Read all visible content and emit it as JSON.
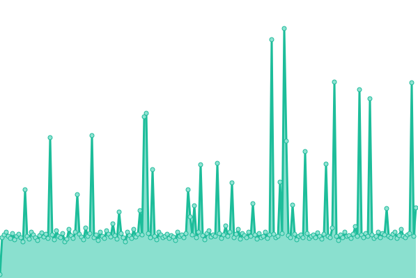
{
  "chart_data": {
    "type": "area",
    "title": "",
    "xlabel": "",
    "ylabel": "",
    "grid": false,
    "legend": "none",
    "ylim": [
      0,
      400
    ],
    "colors": {
      "line": "#1dbd9a",
      "area": "#8ae0cf",
      "marker_fill": "#8fe3d2",
      "marker_stroke": "#1db999"
    },
    "values": [
      5,
      58,
      62,
      66,
      60,
      57,
      64,
      55,
      60,
      63,
      58,
      52,
      127,
      60,
      56,
      66,
      62,
      58,
      54,
      61,
      65,
      59,
      63,
      57,
      202,
      62,
      55,
      68,
      60,
      58,
      64,
      52,
      56,
      70,
      61,
      57,
      66,
      120,
      63,
      59,
      55,
      72,
      60,
      64,
      205,
      58,
      62,
      54,
      66,
      60,
      57,
      68,
      63,
      59,
      78,
      61,
      56,
      95,
      64,
      58,
      52,
      66,
      61,
      57,
      70,
      59,
      63,
      97,
      62,
      232,
      237,
      64,
      58,
      156,
      60,
      55,
      66,
      62,
      58,
      60,
      63,
      57,
      61,
      59,
      54,
      66,
      60,
      62,
      58,
      64,
      127,
      88,
      62,
      104,
      58,
      66,
      163,
      61,
      55,
      64,
      68,
      59,
      62,
      60,
      165,
      64,
      57,
      62,
      75,
      60,
      66,
      137,
      58,
      63,
      70,
      56,
      64,
      61,
      58,
      66,
      60,
      107,
      62,
      56,
      64,
      58,
      60,
      66,
      57,
      62,
      343,
      63,
      58,
      60,
      138,
      64,
      359,
      197,
      61,
      58,
      105,
      63,
      55,
      60,
      62,
      58,
      182,
      64,
      57,
      60,
      62,
      58,
      65,
      60,
      56,
      63,
      164,
      60,
      58,
      72,
      282,
      60,
      54,
      62,
      58,
      66,
      60,
      61,
      57,
      63,
      74,
      60,
      271,
      62,
      58,
      64,
      60,
      258,
      62,
      57,
      60,
      66,
      58,
      64,
      62,
      100,
      60,
      58,
      63,
      66,
      57,
      61,
      70,
      60,
      58,
      62,
      64,
      281,
      60,
      101
    ]
  }
}
